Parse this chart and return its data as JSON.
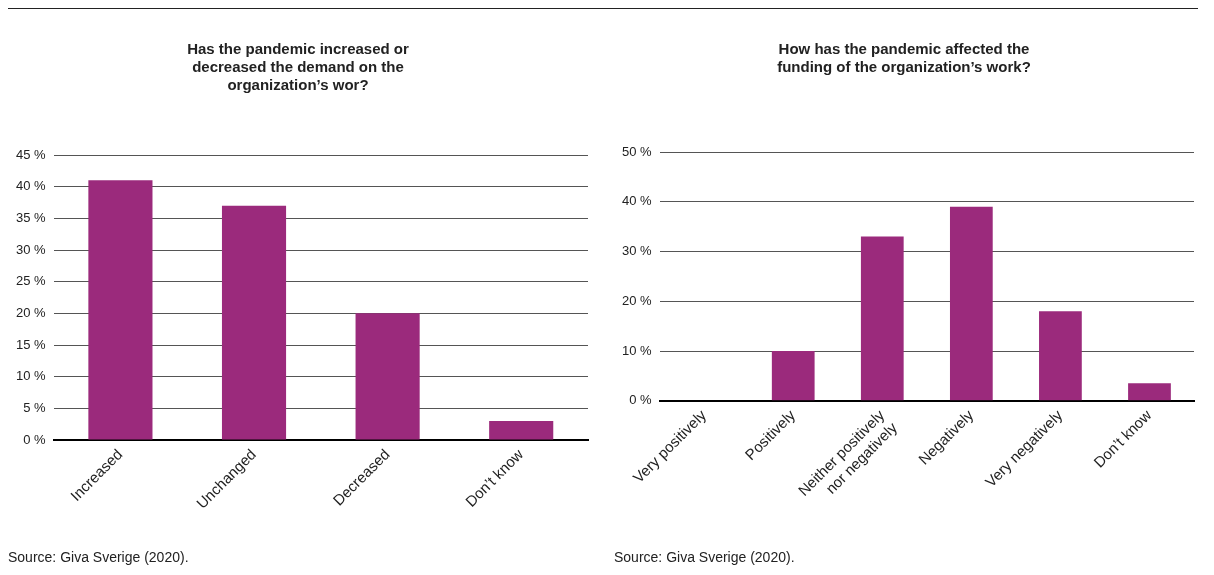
{
  "chart_data": [
    {
      "type": "bar",
      "title": "Has the pandemic increased or decreased the demand on the organization’s wor?",
      "categories": [
        "Increased",
        "Unchanged",
        "Decreased",
        "Don’t know"
      ],
      "values": [
        41,
        37,
        20,
        3
      ],
      "color": "#9b2a7c",
      "ylim": [
        0,
        45
      ],
      "yticks": [
        {
          "value": 0,
          "label": "0 %"
        },
        {
          "value": 5,
          "label": "5 %"
        },
        {
          "value": 10,
          "label": "10 %"
        },
        {
          "value": 15,
          "label": "15 %"
        },
        {
          "value": 20,
          "label": "20 %"
        },
        {
          "value": 25,
          "label": "25 %"
        },
        {
          "value": 30,
          "label": "30 %"
        },
        {
          "value": 35,
          "label": "35 %"
        },
        {
          "value": 40,
          "label": "40 %"
        },
        {
          "value": 45,
          "label": "45 %"
        }
      ],
      "grid": "y",
      "legend": false,
      "annotations": [
        "Source: Giva Sverige (2020)."
      ]
    },
    {
      "type": "bar",
      "title": "How has the pandemic affected the funding of the organization’s work?",
      "categories": [
        "Very positively",
        "Positively",
        "Neither positively nor negatively",
        "Negatively",
        "Very negatively",
        "Don’t know"
      ],
      "values": [
        0,
        10,
        33,
        39,
        18,
        3.5
      ],
      "color": "#9b2a7c",
      "ylim": [
        0,
        50
      ],
      "yticks": [
        {
          "value": 0,
          "label": "0 %"
        },
        {
          "value": 10,
          "label": "10 %"
        },
        {
          "value": 20,
          "label": "20 %"
        },
        {
          "value": 30,
          "label": "30 %"
        },
        {
          "value": 40,
          "label": "40 %"
        },
        {
          "value": 50,
          "label": "50 %"
        }
      ],
      "grid": "y",
      "legend": false,
      "annotations": [
        "Source: Giva Sverige (2020)."
      ]
    }
  ]
}
